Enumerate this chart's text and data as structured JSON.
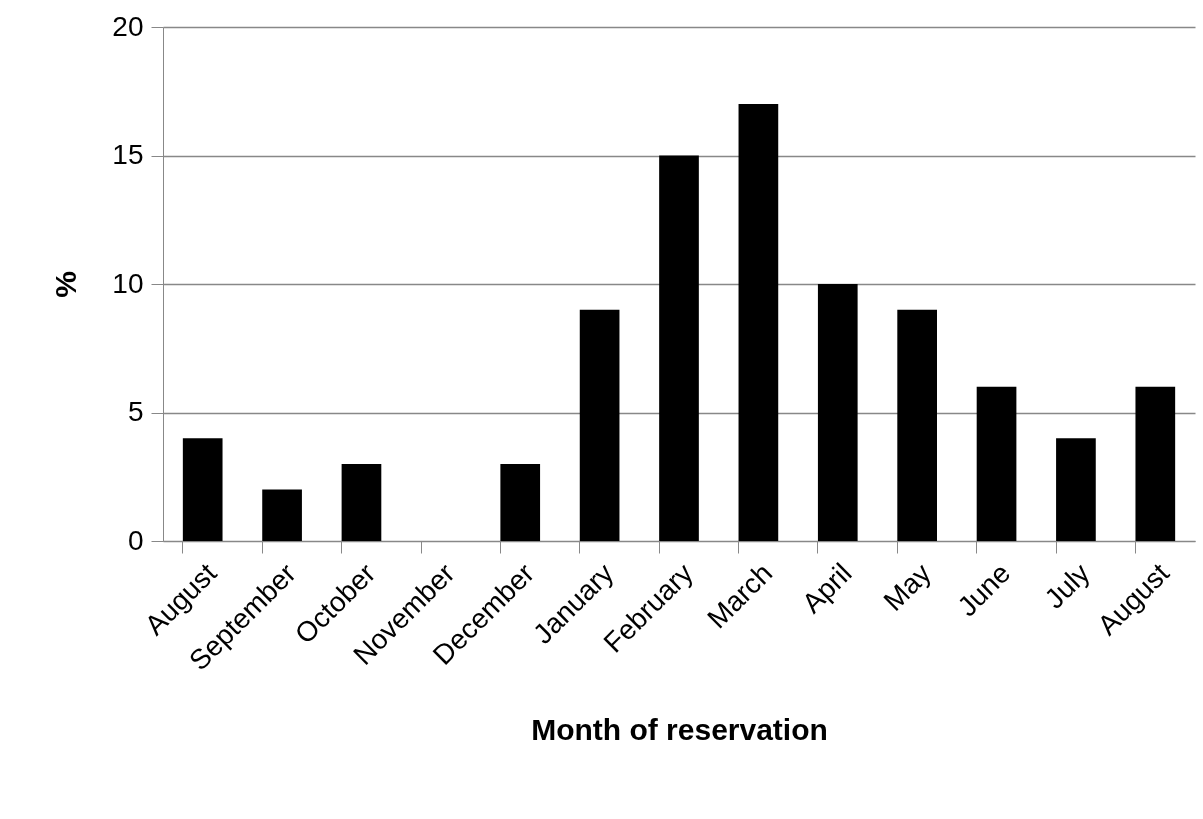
{
  "chart_data": {
    "type": "bar",
    "xlabel": "Month of reservation",
    "ylabel": "%",
    "categories": [
      "August",
      "September",
      "October",
      "November",
      "December",
      "January",
      "February",
      "March",
      "April",
      "May",
      "June",
      "July",
      "August"
    ],
    "values": [
      4,
      2,
      3,
      0,
      3,
      9,
      15,
      17,
      10,
      9,
      6,
      4,
      6
    ],
    "color": "#000000",
    "ylim": [
      0,
      20
    ],
    "yticks": [
      0,
      5,
      10,
      15,
      20
    ],
    "grid": "y"
  }
}
